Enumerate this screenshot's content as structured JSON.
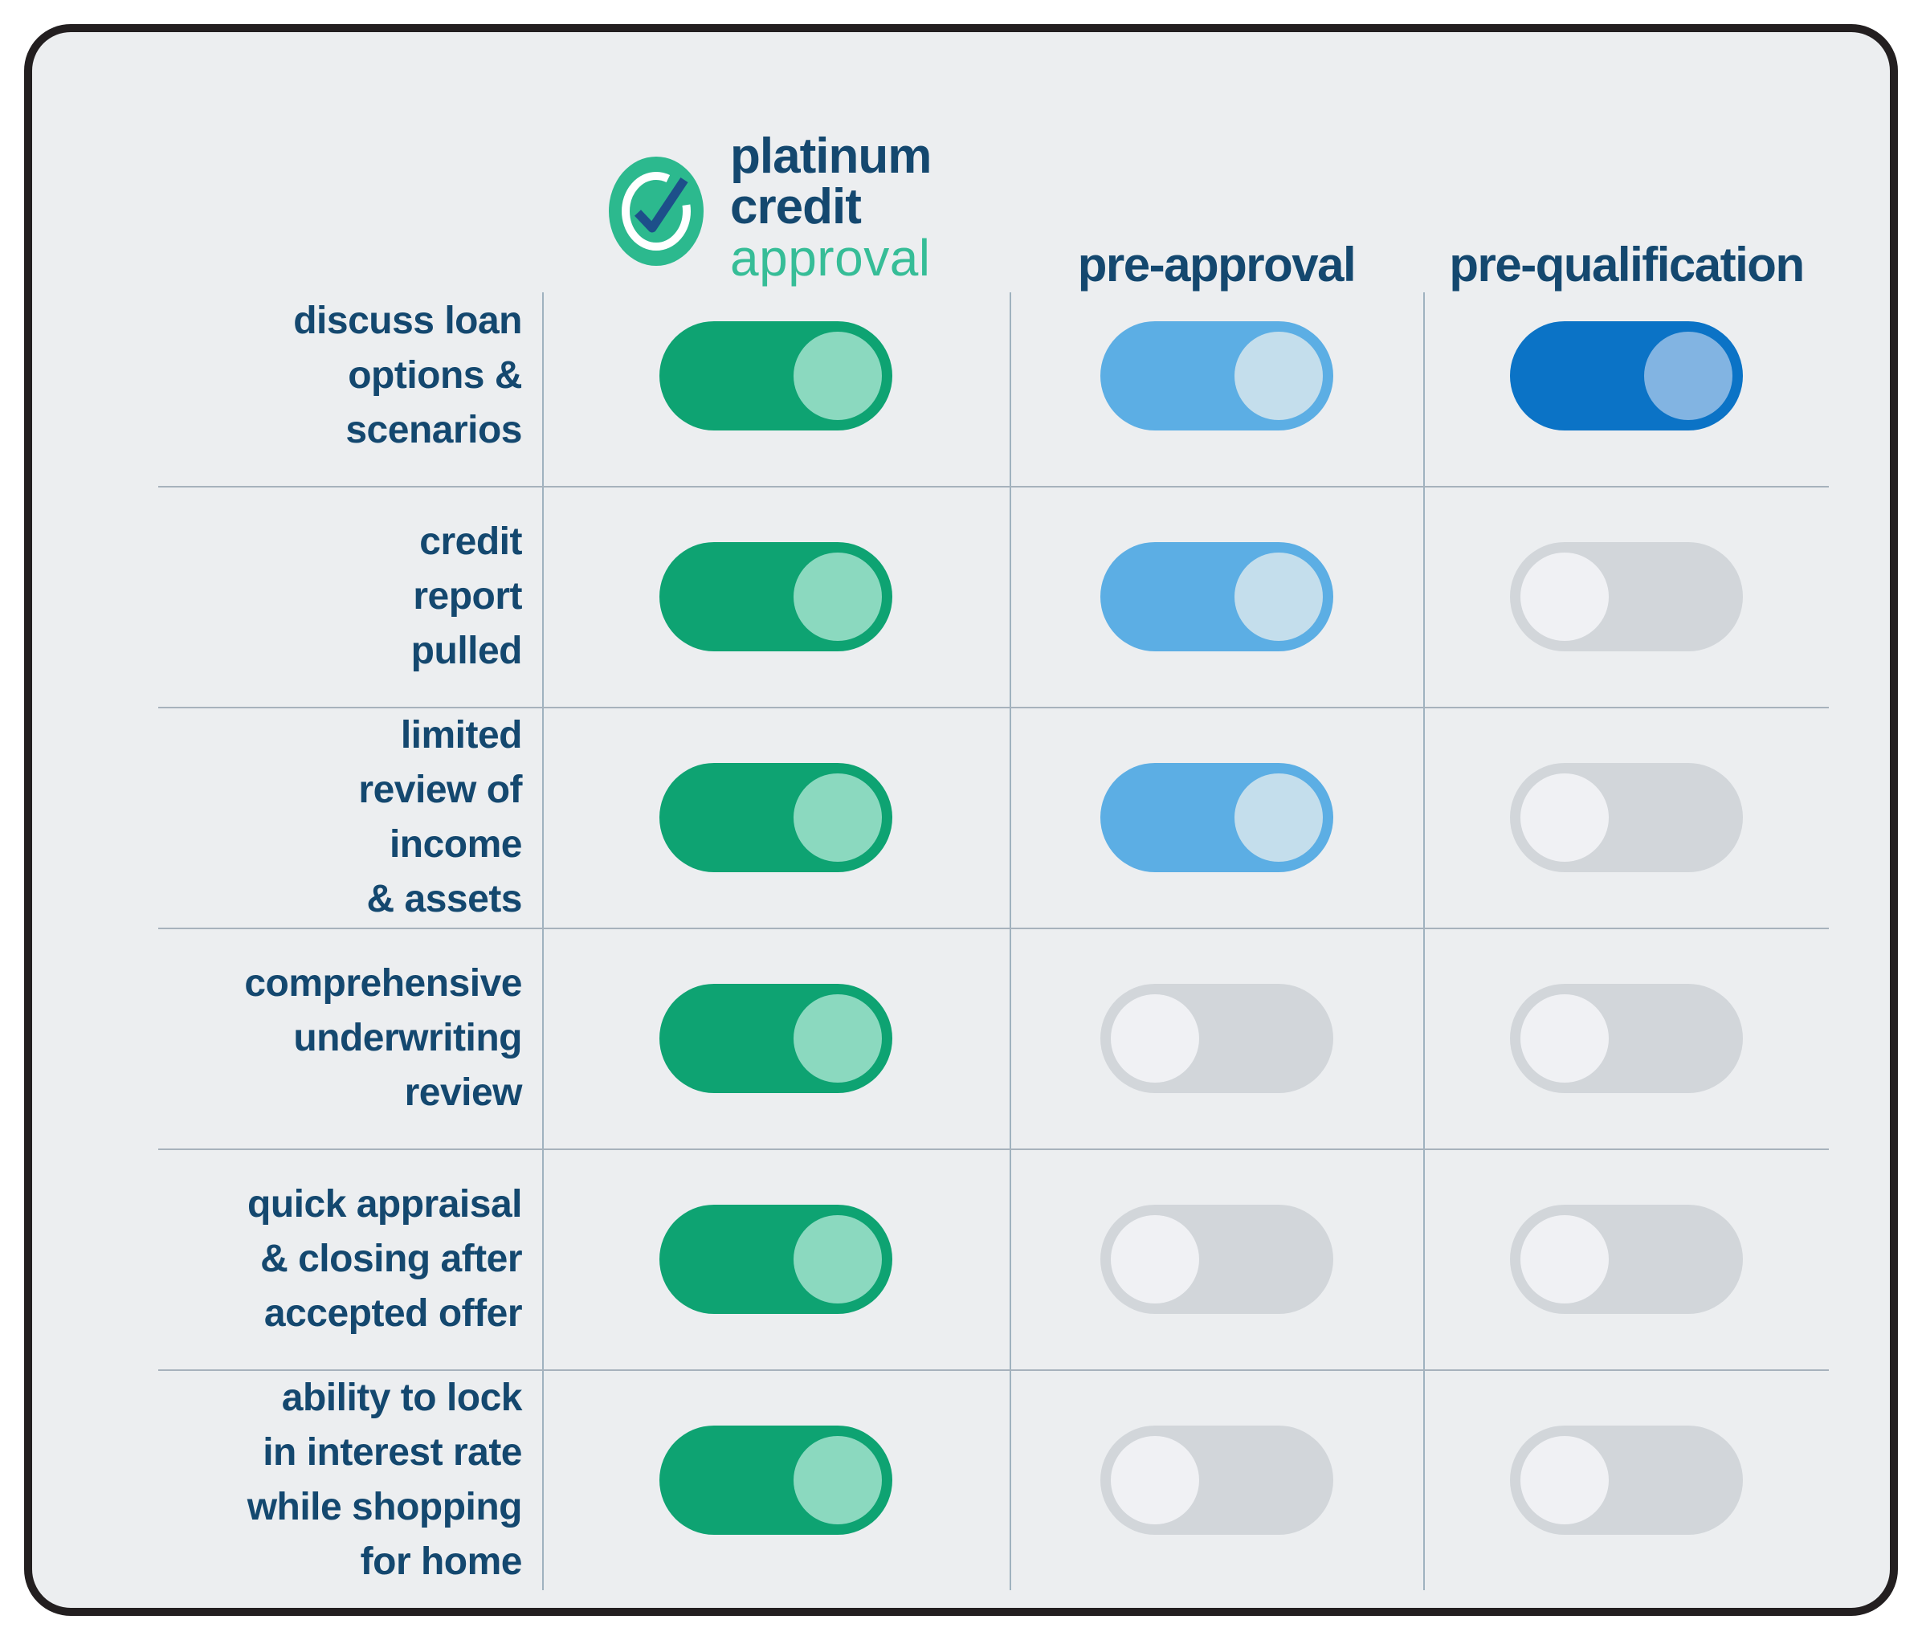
{
  "theme": {
    "page_bg": "#FFFFFF",
    "card_bg": "#ECEEF0",
    "card_border": "#231F20",
    "navy": "#14486F",
    "logo_green": "#2CB98E",
    "logo_teal": "#36BD97",
    "check_blue": "#1D4F8A",
    "h_divider": "#A7B2BC",
    "v_divider": "#9FB2BF"
  },
  "logo": {
    "icon": "check-circle-icon",
    "line1": "platinum",
    "line2": "credit",
    "line3": "approval"
  },
  "header": {
    "columns": [
      {
        "id": "platinum-credit-approval",
        "label": "platinum credit approval (logo)"
      },
      {
        "id": "pre-approval",
        "label": "pre-approval"
      },
      {
        "id": "pre-qualification",
        "label": "pre-qualification"
      }
    ]
  },
  "toggle_variants": {
    "green": {
      "track": "#0EA372",
      "knob": "#8BD9BF"
    },
    "blue": {
      "track": "#5CAEE4",
      "knob": "#C4DEEC"
    },
    "darkblue": {
      "track": "#0B73C6",
      "knob": "#82B4E2"
    },
    "off": {
      "track": "#D2D6DA",
      "knob": "#F0F1F4"
    }
  },
  "chart_data": {
    "type": "table",
    "title": "platinum credit approval vs pre-approval vs pre-qualification",
    "columns": [
      "platinum credit approval",
      "pre-approval",
      "pre-qualification"
    ],
    "rows": [
      {
        "feature": "discuss loan options & scenarios",
        "values": [
          true,
          true,
          true
        ]
      },
      {
        "feature": "credit report pulled",
        "values": [
          true,
          true,
          false
        ]
      },
      {
        "feature": "limited review of income & assets",
        "values": [
          true,
          true,
          false
        ]
      },
      {
        "feature": "comprehensive underwriting review",
        "values": [
          true,
          false,
          false
        ]
      },
      {
        "feature": "quick appraisal & closing after accepted offer",
        "values": [
          true,
          false,
          false
        ]
      },
      {
        "feature": "ability to lock in interest rate while shopping for home",
        "values": [
          true,
          false,
          false
        ]
      }
    ]
  },
  "rows": [
    {
      "label_lines": [
        "discuss loan",
        "options &",
        "scenarios"
      ],
      "toggles": [
        {
          "column": "platinum-credit-approval",
          "variant": "green",
          "state": "on"
        },
        {
          "column": "pre-approval",
          "variant": "blue",
          "state": "on"
        },
        {
          "column": "pre-qualification",
          "variant": "darkblue",
          "state": "on"
        }
      ]
    },
    {
      "label_lines": [
        "credit",
        "report",
        "pulled"
      ],
      "toggles": [
        {
          "column": "platinum-credit-approval",
          "variant": "green",
          "state": "on"
        },
        {
          "column": "pre-approval",
          "variant": "blue",
          "state": "on"
        },
        {
          "column": "pre-qualification",
          "variant": "off",
          "state": "off"
        }
      ]
    },
    {
      "label_lines": [
        "limited",
        "review of",
        "income",
        "& assets"
      ],
      "toggles": [
        {
          "column": "platinum-credit-approval",
          "variant": "green",
          "state": "on"
        },
        {
          "column": "pre-approval",
          "variant": "blue",
          "state": "on"
        },
        {
          "column": "pre-qualification",
          "variant": "off",
          "state": "off"
        }
      ]
    },
    {
      "label_lines": [
        "comprehensive",
        "underwriting",
        "review"
      ],
      "toggles": [
        {
          "column": "platinum-credit-approval",
          "variant": "green",
          "state": "on"
        },
        {
          "column": "pre-approval",
          "variant": "off",
          "state": "off"
        },
        {
          "column": "pre-qualification",
          "variant": "off",
          "state": "off"
        }
      ]
    },
    {
      "label_lines": [
        "quick appraisal",
        "& closing after",
        "accepted offer"
      ],
      "toggles": [
        {
          "column": "platinum-credit-approval",
          "variant": "green",
          "state": "on"
        },
        {
          "column": "pre-approval",
          "variant": "off",
          "state": "off"
        },
        {
          "column": "pre-qualification",
          "variant": "off",
          "state": "off"
        }
      ]
    },
    {
      "label_lines": [
        "ability to lock",
        "in interest rate",
        "while shopping",
        "for home"
      ],
      "toggles": [
        {
          "column": "platinum-credit-approval",
          "variant": "green",
          "state": "on"
        },
        {
          "column": "pre-approval",
          "variant": "off",
          "state": "off"
        },
        {
          "column": "pre-qualification",
          "variant": "off",
          "state": "off"
        }
      ]
    }
  ]
}
